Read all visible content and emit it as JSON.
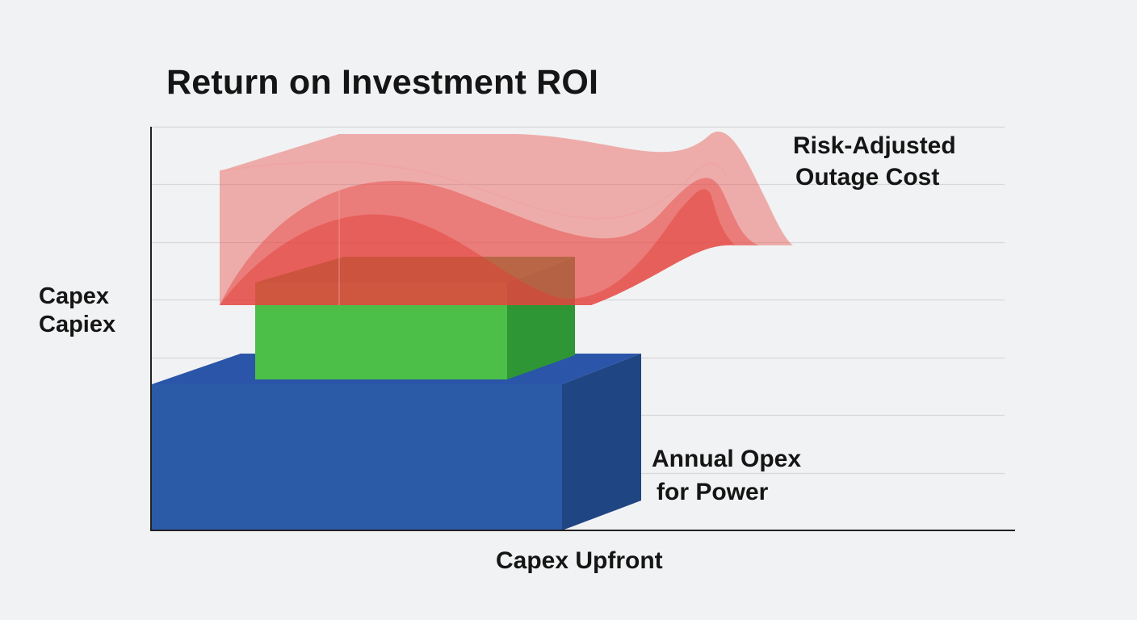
{
  "chart_data": {
    "type": "area",
    "title": "Return on Investment ROI",
    "xlabel": "Capex Upfront",
    "ylabel_lines": [
      "Capex",
      "Capiex"
    ],
    "grid": true,
    "gridline_count": 7,
    "series": [
      {
        "name": "Annual Opex for Power",
        "name_lines": [
          "Annual Opex",
          "for Power"
        ],
        "color": "#2a59a3"
      },
      {
        "name": "",
        "color": "#4bbf48"
      },
      {
        "name": "Risk-Adjusted Outage Cost",
        "name_lines": [
          "Risk-Adjusted",
          "Outage Cost"
        ],
        "color": "#e9524d"
      }
    ]
  }
}
